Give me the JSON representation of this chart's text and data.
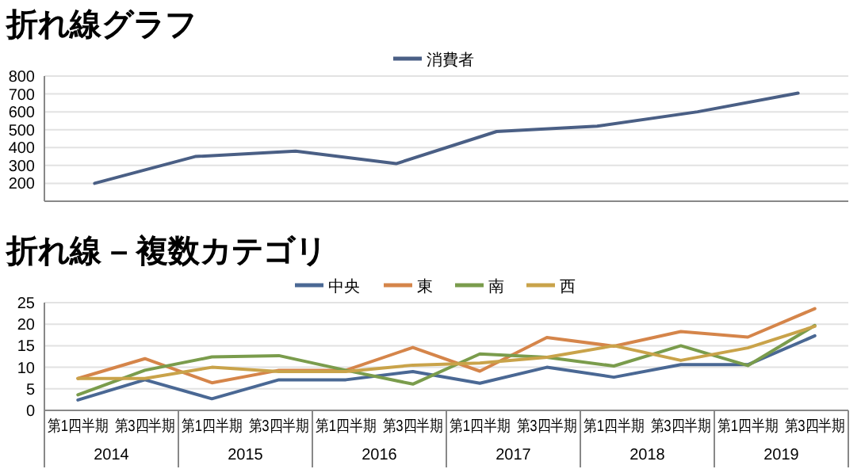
{
  "chart_data": [
    {
      "type": "line",
      "title": "折れ線グラフ",
      "categories": [
        null,
        null,
        null,
        null,
        null,
        null,
        null,
        null
      ],
      "series": [
        {
          "name": "消費者",
          "color": "#4a5f85",
          "values": [
            200,
            350,
            380,
            310,
            490,
            520,
            600,
            705
          ]
        }
      ],
      "ylim": [
        100,
        800
      ],
      "yticks": [
        200,
        300,
        400,
        500,
        600,
        700,
        800
      ],
      "grid": "y",
      "legend": "top",
      "tick_labels": "y"
    },
    {
      "type": "line",
      "title": "折れ線 – 複数カテゴリ",
      "categories": [
        "第1四半期",
        "第3四半期",
        "第1四半期",
        "第3四半期",
        "第1四半期",
        "第3四半期",
        "第1四半期",
        "第3四半期",
        "第1四半期",
        "第3四半期",
        "第1四半期",
        "第3四半期"
      ],
      "annotations": [
        "2014",
        "2015",
        "2016",
        "2017",
        "2018",
        "2019"
      ],
      "series": [
        {
          "name": "中央",
          "color": "#4a6894",
          "values": [
            2.4,
            7.1,
            2.7,
            7.1,
            7.1,
            9,
            6.3,
            10,
            7.7,
            10.6,
            10.6,
            17.3
          ]
        },
        {
          "name": "東",
          "color": "#d5854a",
          "values": [
            7.4,
            12,
            6.4,
            9.3,
            9.3,
            14.6,
            9.1,
            16.9,
            14.9,
            18.3,
            17,
            23.6
          ]
        },
        {
          "name": "南",
          "color": "#7a9c4c",
          "values": [
            3.6,
            9.3,
            12.4,
            12.7,
            9.3,
            6.1,
            13.1,
            12.3,
            10.3,
            15,
            10.4,
            19.7
          ]
        },
        {
          "name": "西",
          "color": "#c9a34a",
          "values": [
            7.4,
            7.4,
            10,
            9,
            9,
            10.5,
            11,
            12.3,
            15,
            11.6,
            14.5,
            19.5
          ]
        }
      ],
      "ylim": [
        0,
        25
      ],
      "yticks": [
        0,
        5,
        10,
        15,
        20,
        25
      ],
      "grid": "y",
      "legend": "top"
    }
  ]
}
